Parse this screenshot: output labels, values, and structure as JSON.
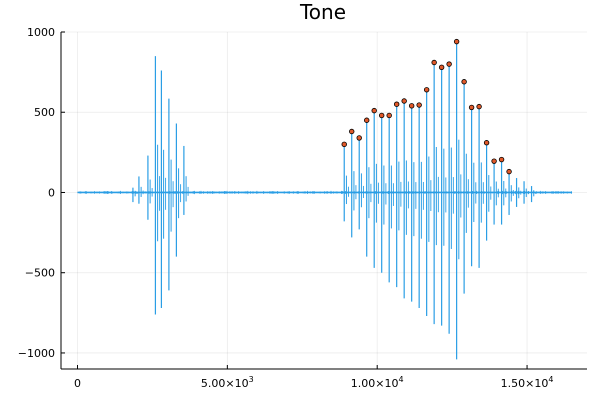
{
  "chart_data": {
    "type": "line",
    "title": "Tone",
    "xlabel": "",
    "ylabel": "",
    "xlim": [
      -550,
      17000
    ],
    "ylim": [
      -1100,
      1000
    ],
    "x_ticks": [
      0,
      5000,
      10000,
      15000
    ],
    "x_tick_labels": [
      {
        "text": "0",
        "mantissa": "",
        "exp": ""
      },
      {
        "text": "",
        "mantissa": "5.00×10",
        "exp": "3"
      },
      {
        "text": "",
        "mantissa": "1.00×10",
        "exp": "4"
      },
      {
        "text": "",
        "mantissa": "1.50×10",
        "exp": "4"
      }
    ],
    "y_ticks": [
      -1000,
      -500,
      0,
      500,
      1000
    ],
    "y_tick_labels": [
      "−1000",
      "−500",
      "0",
      "500",
      "1000"
    ],
    "grid": true,
    "legend": "none",
    "colors": {
      "line": "#2a9ee5",
      "peak_fill": "#e0592a",
      "peak_stroke": "#000000"
    },
    "baseline_range": [
      0,
      16500
    ],
    "series": [
      {
        "kind": "line",
        "spikes": [
          {
            "x": 1850,
            "up": 30,
            "down": -60
          },
          {
            "x": 2050,
            "up": 100,
            "down": -70
          },
          {
            "x": 2350,
            "up": 230,
            "down": -170
          },
          {
            "x": 2600,
            "up": 850,
            "down": -760
          },
          {
            "x": 2800,
            "up": 760,
            "down": -720
          },
          {
            "x": 3050,
            "up": 585,
            "down": -610
          },
          {
            "x": 3300,
            "up": 430,
            "down": -400
          },
          {
            "x": 3550,
            "up": 290,
            "down": -140
          },
          {
            "x": 8900,
            "up": 300,
            "down": -180
          },
          {
            "x": 9150,
            "up": 380,
            "down": -280
          },
          {
            "x": 9400,
            "up": 340,
            "down": -230
          },
          {
            "x": 9650,
            "up": 450,
            "down": -400
          },
          {
            "x": 9900,
            "up": 510,
            "down": -470
          },
          {
            "x": 10150,
            "up": 480,
            "down": -500
          },
          {
            "x": 10400,
            "up": 480,
            "down": -560
          },
          {
            "x": 10650,
            "up": 550,
            "down": -590
          },
          {
            "x": 10900,
            "up": 570,
            "down": -660
          },
          {
            "x": 11150,
            "up": 540,
            "down": -680
          },
          {
            "x": 11400,
            "up": 545,
            "down": -720
          },
          {
            "x": 11650,
            "up": 640,
            "down": -770
          },
          {
            "x": 11900,
            "up": 810,
            "down": -820
          },
          {
            "x": 12150,
            "up": 780,
            "down": -830
          },
          {
            "x": 12400,
            "up": 800,
            "down": -880
          },
          {
            "x": 12650,
            "up": 940,
            "down": -1040
          },
          {
            "x": 12900,
            "up": 690,
            "down": -630
          },
          {
            "x": 13150,
            "up": 530,
            "down": -460
          },
          {
            "x": 13400,
            "up": 535,
            "down": -470
          },
          {
            "x": 13650,
            "up": 310,
            "down": -300
          },
          {
            "x": 13900,
            "up": 195,
            "down": -200
          },
          {
            "x": 14150,
            "up": 205,
            "down": -200
          },
          {
            "x": 14400,
            "up": 130,
            "down": -140
          },
          {
            "x": 14650,
            "up": 90,
            "down": -90
          },
          {
            "x": 14900,
            "up": 70,
            "down": -70
          },
          {
            "x": 15150,
            "up": 40,
            "down": -60
          }
        ]
      },
      {
        "kind": "scatter",
        "points": [
          [
            8900,
            300
          ],
          [
            9150,
            380
          ],
          [
            9400,
            340
          ],
          [
            9650,
            450
          ],
          [
            9900,
            510
          ],
          [
            10150,
            480
          ],
          [
            10400,
            480
          ],
          [
            10650,
            550
          ],
          [
            10900,
            570
          ],
          [
            11150,
            540
          ],
          [
            11400,
            545
          ],
          [
            11650,
            640
          ],
          [
            11900,
            810
          ],
          [
            12150,
            780
          ],
          [
            12400,
            800
          ],
          [
            12650,
            940
          ],
          [
            12900,
            690
          ],
          [
            13150,
            530
          ],
          [
            13400,
            535
          ],
          [
            13650,
            310
          ],
          [
            13900,
            195
          ],
          [
            14150,
            205
          ],
          [
            14400,
            130
          ]
        ]
      }
    ]
  }
}
